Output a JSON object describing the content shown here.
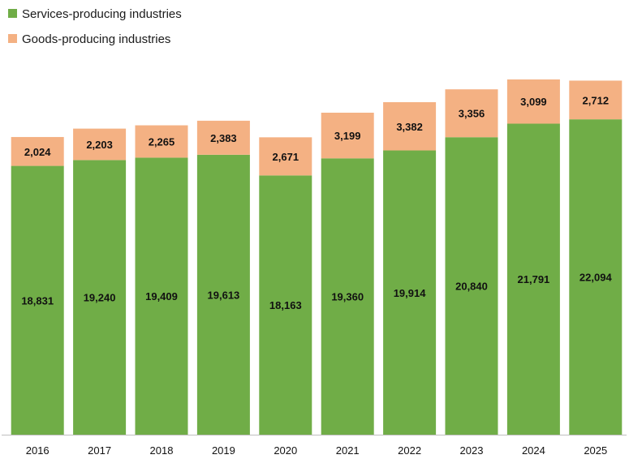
{
  "chart_data": {
    "type": "bar",
    "stacked": true,
    "categories": [
      "2016",
      "2017",
      "2018",
      "2019",
      "2020",
      "2021",
      "2022",
      "2023",
      "2024",
      "2025"
    ],
    "series": [
      {
        "name": "Services-producing industries",
        "color": "#70ad47",
        "values": [
          18831,
          19240,
          19409,
          19613,
          18163,
          19360,
          19914,
          20840,
          21791,
          22094
        ],
        "labels": [
          "18,831",
          "19,240",
          "19,409",
          "19,613",
          "18,163",
          "19,360",
          "19,914",
          "20,840",
          "21,791",
          "22,094"
        ]
      },
      {
        "name": "Goods-producing industries",
        "color": "#f4b183",
        "values": [
          2024,
          2203,
          2265,
          2383,
          2671,
          3199,
          3382,
          3356,
          3099,
          2712
        ],
        "labels": [
          "2,024",
          "2,203",
          "2,265",
          "2,383",
          "2,671",
          "3,199",
          "3,382",
          "3,356",
          "3,099",
          "2,712"
        ]
      }
    ],
    "title": "",
    "xlabel": "",
    "ylabel": "",
    "ylim": [
      0,
      25000
    ],
    "grid": false,
    "legend": "top-left",
    "axis_color": "#bfbfbf"
  }
}
